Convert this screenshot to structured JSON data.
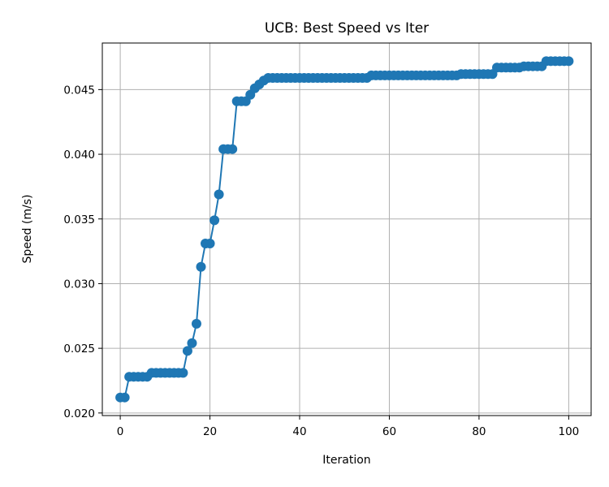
{
  "chart_data": {
    "type": "line",
    "title": "UCB: Best Speed vs Iter",
    "xlabel": "Iteration",
    "ylabel": "Speed (m/s)",
    "xlim": [
      -4,
      105
    ],
    "ylim": [
      0.0198,
      0.0486
    ],
    "xticks": [
      0,
      20,
      40,
      60,
      80,
      100
    ],
    "xtick_labels": [
      "0",
      "20",
      "40",
      "60",
      "80",
      "100"
    ],
    "yticks": [
      0.02,
      0.025,
      0.03,
      0.035,
      0.04,
      0.045
    ],
    "ytick_labels": [
      "0.020",
      "0.025",
      "0.030",
      "0.035",
      "0.040",
      "0.045"
    ],
    "grid": true,
    "color": "#1f77b4",
    "series": [
      {
        "marker": "circle",
        "x": [
          0,
          1,
          2,
          3,
          4,
          5,
          6,
          7,
          8,
          9,
          10,
          11,
          12,
          13,
          14,
          15,
          16,
          17,
          18,
          19,
          20,
          21,
          22,
          23,
          24,
          25,
          26,
          27,
          28,
          29,
          30,
          31,
          32,
          33,
          34,
          35,
          36,
          37,
          38,
          39,
          40,
          41,
          42,
          43,
          44,
          45,
          46,
          47,
          48,
          49,
          50,
          51,
          52,
          53,
          54,
          55,
          56,
          57,
          58,
          59,
          60,
          61,
          62,
          63,
          64,
          65,
          66,
          67,
          68,
          69,
          70,
          71,
          72,
          73,
          74,
          75,
          76,
          77,
          78,
          79,
          80,
          81,
          82,
          83,
          84,
          85,
          86,
          87,
          88,
          89,
          90,
          91,
          92,
          93,
          94,
          95,
          96,
          97,
          98,
          99,
          100
        ],
        "y": [
          0.0212,
          0.0212,
          0.0228,
          0.0228,
          0.0228,
          0.0228,
          0.0228,
          0.0231,
          0.0231,
          0.0231,
          0.0231,
          0.0231,
          0.0231,
          0.0231,
          0.0231,
          0.0248,
          0.0254,
          0.0269,
          0.0313,
          0.0331,
          0.0331,
          0.0349,
          0.0369,
          0.0404,
          0.0404,
          0.0404,
          0.0441,
          0.0441,
          0.0441,
          0.0446,
          0.0451,
          0.0454,
          0.0457,
          0.0459,
          0.0459,
          0.0459,
          0.0459,
          0.0459,
          0.0459,
          0.0459,
          0.0459,
          0.0459,
          0.0459,
          0.0459,
          0.0459,
          0.0459,
          0.0459,
          0.0459,
          0.0459,
          0.0459,
          0.0459,
          0.0459,
          0.0459,
          0.0459,
          0.0459,
          0.0459,
          0.0461,
          0.0461,
          0.0461,
          0.0461,
          0.0461,
          0.0461,
          0.0461,
          0.0461,
          0.0461,
          0.0461,
          0.0461,
          0.0461,
          0.0461,
          0.0461,
          0.0461,
          0.0461,
          0.0461,
          0.0461,
          0.0461,
          0.0461,
          0.0462,
          0.0462,
          0.0462,
          0.0462,
          0.0462,
          0.0462,
          0.0462,
          0.0462,
          0.0467,
          0.0467,
          0.0467,
          0.0467,
          0.0467,
          0.0467,
          0.0468,
          0.0468,
          0.0468,
          0.0468,
          0.0468,
          0.0472,
          0.0472,
          0.0472,
          0.0472,
          0.0472,
          0.0472
        ]
      }
    ]
  }
}
